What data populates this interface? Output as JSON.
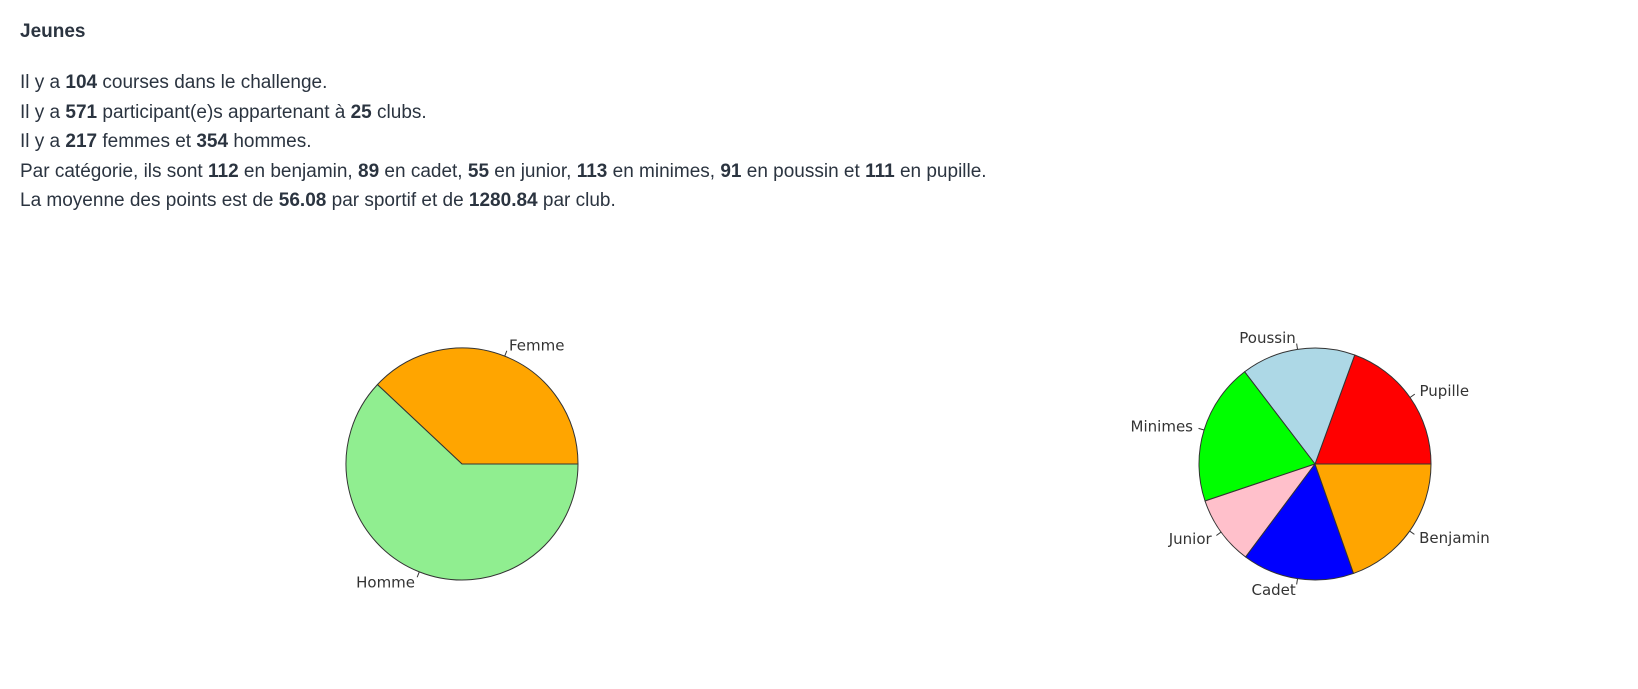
{
  "section": {
    "title": "Jeunes"
  },
  "stats": {
    "line1": {
      "pre": "Il y a ",
      "courses": "104",
      "post": " courses dans le challenge."
    },
    "line2": {
      "pre": "Il y a ",
      "participants": "571",
      "mid": " participant(e)s appartenant à ",
      "clubs": "25",
      "post": " clubs."
    },
    "line3": {
      "pre": "Il y a ",
      "femmes": "217",
      "mid": " femmes et ",
      "hommes": "354",
      "post": " hommes."
    },
    "line4": {
      "pre": "Par catégorie, ils sont ",
      "benjamin": "112",
      "t1": " en benjamin, ",
      "cadet": "89",
      "t2": " en cadet, ",
      "junior": "55",
      "t3": " en junior, ",
      "minimes": "113",
      "t4": " en minimes, ",
      "poussin": "91",
      "t5": " en poussin et ",
      "pupille": "111",
      "post": " en pupille."
    },
    "line5": {
      "pre": "La moyenne des points est de ",
      "per_athlete": "56.08",
      "mid": " par sportif et de ",
      "per_club": "1280.84",
      "post": " par club."
    }
  },
  "chart_data": [
    {
      "type": "pie",
      "start_angle_deg": 0,
      "direction": "counterclockwise",
      "slices": [
        {
          "label": "Femme",
          "value": 217,
          "color": "#FFA500"
        },
        {
          "label": "Homme",
          "value": 354,
          "color": "#90EE90"
        }
      ]
    },
    {
      "type": "pie",
      "start_angle_deg": 0,
      "direction": "counterclockwise",
      "slices": [
        {
          "label": "Pupille",
          "value": 111,
          "color": "#FF0000"
        },
        {
          "label": "Poussin",
          "value": 91,
          "color": "#ADD8E6"
        },
        {
          "label": "Minimes",
          "value": 113,
          "color": "#00FF00"
        },
        {
          "label": "Junior",
          "value": 55,
          "color": "#FFC0CB"
        },
        {
          "label": "Cadet",
          "value": 89,
          "color": "#0000FF"
        },
        {
          "label": "Benjamin",
          "value": 112,
          "color": "#FFA500"
        }
      ]
    }
  ]
}
